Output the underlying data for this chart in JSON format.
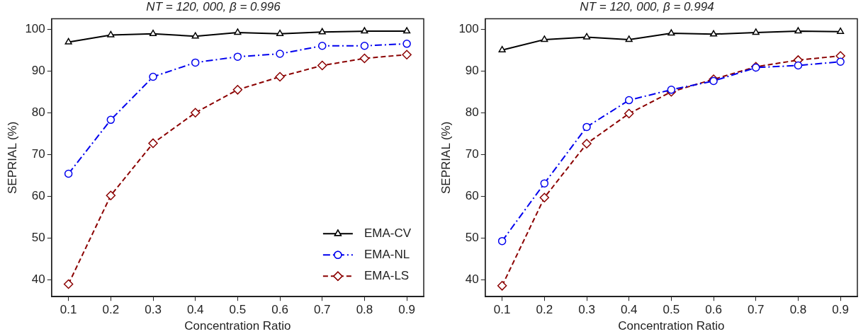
{
  "chart_data": [
    {
      "type": "line",
      "title": "NT = 120, 000, β = 0.996",
      "xlabel": "Concentration Ratio",
      "ylabel": "SEPRIAL (%)",
      "x": [
        0.1,
        0.2,
        0.3,
        0.4,
        0.5,
        0.6,
        0.7,
        0.8,
        0.9
      ],
      "xlim": [
        0.06,
        0.94
      ],
      "xticks": [
        0.1,
        0.2,
        0.3,
        0.4,
        0.5,
        0.6,
        0.7,
        0.8,
        0.9
      ],
      "ylim": [
        36,
        102.5
      ],
      "yticks": [
        40,
        50,
        60,
        70,
        80,
        90,
        100
      ],
      "grid": false,
      "legend": "bottom right",
      "series": [
        {
          "name": "EMA-CV",
          "color": "#000000",
          "marker": "triangle",
          "line_style": "solid",
          "values": [
            96.9,
            98.6,
            98.9,
            98.3,
            99.2,
            98.9,
            99.3,
            99.5,
            99.5
          ]
        },
        {
          "name": "EMA-NL",
          "color": "#0000ee",
          "marker": "circle",
          "line_style": "dashdot",
          "values": [
            65.4,
            78.3,
            88.6,
            92.0,
            93.4,
            94.1,
            96.0,
            96.0,
            96.5
          ]
        },
        {
          "name": "EMA-LS",
          "color": "#8b0000",
          "marker": "diamond",
          "line_style": "dashed",
          "values": [
            39.0,
            60.2,
            72.7,
            80.0,
            85.5,
            88.6,
            91.3,
            93.0,
            93.9
          ]
        }
      ]
    },
    {
      "type": "line",
      "title": "NT = 120, 000, β = 0.994",
      "xlabel": "Concentration Ratio",
      "ylabel": "SEPRIAL (%)",
      "x": [
        0.1,
        0.2,
        0.3,
        0.4,
        0.5,
        0.6,
        0.7,
        0.8,
        0.9
      ],
      "xlim": [
        0.06,
        0.94
      ],
      "xticks": [
        0.1,
        0.2,
        0.3,
        0.4,
        0.5,
        0.6,
        0.7,
        0.8,
        0.9
      ],
      "ylim": [
        36,
        102.5
      ],
      "yticks": [
        40,
        50,
        60,
        70,
        80,
        90,
        100
      ],
      "grid": false,
      "series": [
        {
          "color": "#000000",
          "marker": "triangle",
          "line_style": "solid",
          "values": [
            95.0,
            97.5,
            98.1,
            97.5,
            99.0,
            98.8,
            99.2,
            99.5,
            99.4
          ]
        },
        {
          "color": "#0000ee",
          "marker": "circle",
          "line_style": "dashdot",
          "values": [
            49.3,
            63.1,
            76.6,
            83.0,
            85.5,
            87.6,
            90.8,
            91.3,
            92.2
          ]
        },
        {
          "color": "#8b0000",
          "marker": "diamond",
          "line_style": "dashed",
          "values": [
            38.6,
            59.7,
            72.6,
            79.8,
            85.0,
            88.0,
            91.0,
            92.6,
            93.6
          ]
        }
      ]
    }
  ]
}
